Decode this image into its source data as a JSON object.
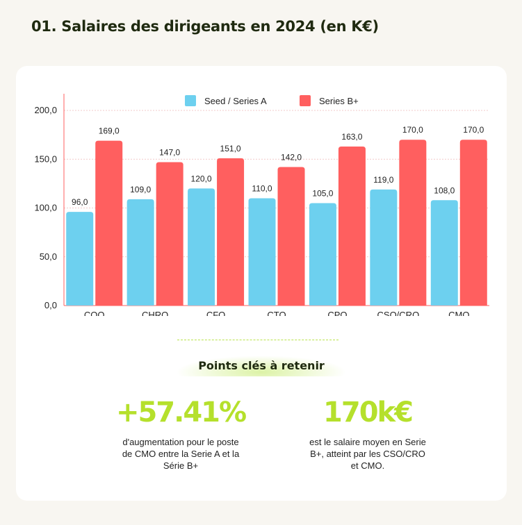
{
  "page": {
    "title": "01. Salaires des dirigeants en 2024 (en K€)"
  },
  "chart_data": {
    "type": "bar",
    "categories": [
      "COO",
      "CHRO",
      "CFO",
      "CTO",
      "CPO",
      "CSO/CRO",
      "CMO"
    ],
    "series": [
      {
        "name": "Seed / Series A",
        "color": "#6dd0ef",
        "values": [
          96,
          109,
          120,
          110,
          105,
          119,
          108
        ]
      },
      {
        "name": "Series B+",
        "color": "#ff5f5f",
        "values": [
          169,
          147,
          151,
          142,
          163,
          170,
          170
        ]
      }
    ],
    "yticks": [
      0,
      50,
      100,
      150,
      200
    ],
    "ytick_labels": [
      "0,0",
      "50,0",
      "100,0",
      "150,0",
      "200,0"
    ],
    "ylim": [
      0,
      210
    ],
    "grid": true,
    "legend": "top-center",
    "value_labels": [
      [
        "96,0",
        "109,0",
        "120,0",
        "110,0",
        "105,0",
        "119,0",
        "108,0"
      ],
      [
        "169,0",
        "147,0",
        "151,0",
        "142,0",
        "163,0",
        "170,0",
        "170,0"
      ]
    ]
  },
  "takeaways": {
    "heading": "Points clés à retenir",
    "stats": [
      {
        "value": "+57.41%",
        "description": "d'augmentation pour le poste de CMO entre la Serie A et la Série B+"
      },
      {
        "value": "170k€",
        "description": "est le salaire moyen en Serie B+, atteint par les CSO/CRO et CMO."
      }
    ]
  },
  "colors": {
    "accent": "#b5e02c",
    "background": "#f8f6f1",
    "title": "#1f2a10"
  }
}
